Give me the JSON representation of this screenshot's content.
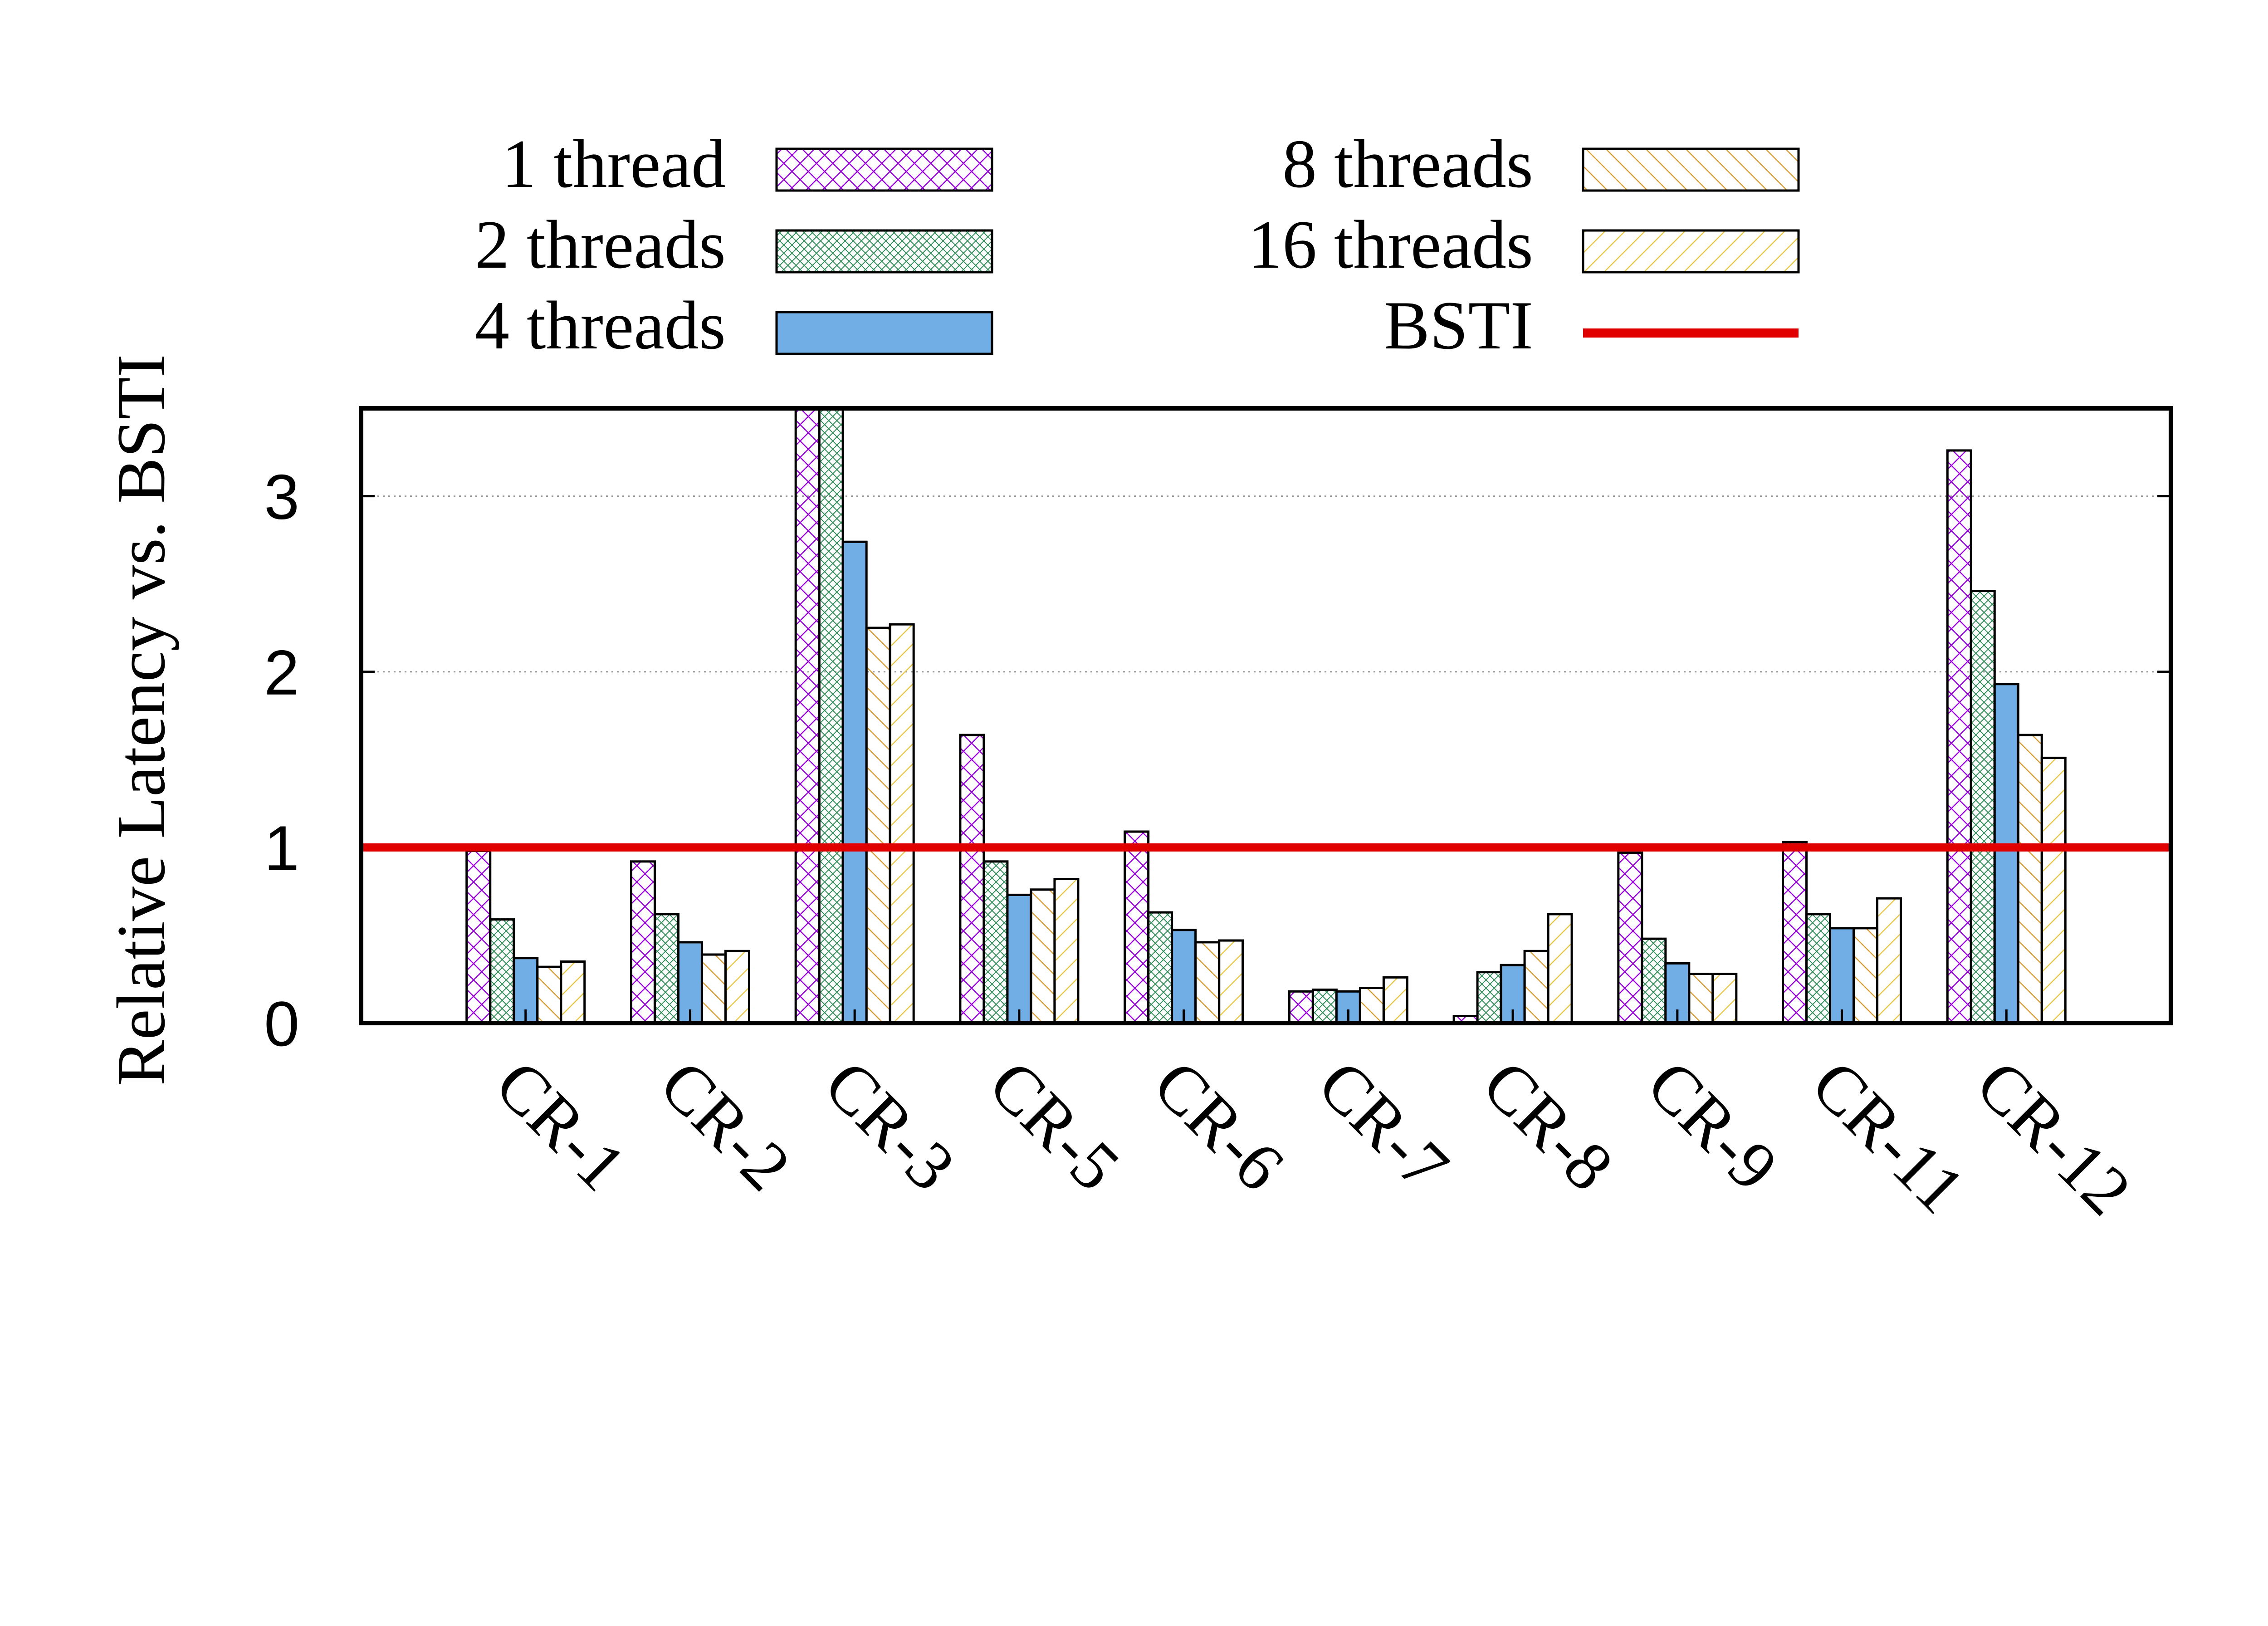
{
  "chart_data": {
    "type": "bar",
    "title": "",
    "xlabel": "",
    "ylabel": "Relative Latency vs. BSTI",
    "ylim": [
      0,
      3.5
    ],
    "yticks": [
      0,
      1,
      2,
      3
    ],
    "grid": "horizontal dotted",
    "legend_position": "top",
    "categories": [
      "CR-1",
      "CR-2",
      "CR-3",
      "CR-5",
      "CR-6",
      "CR-7",
      "CR-8",
      "CR-9",
      "CR-11",
      "CR-12"
    ],
    "series": [
      {
        "name": "1 thread",
        "color": "#9400d3",
        "pattern": "crosshatch-coarse",
        "values": [
          0.98,
          0.92,
          3.6,
          1.64,
          1.09,
          0.18,
          0.04,
          0.97,
          1.03,
          3.26
        ]
      },
      {
        "name": "2 threads",
        "color": "#2e8b57",
        "pattern": "crosshatch-fine",
        "values": [
          0.59,
          0.62,
          3.6,
          0.92,
          0.63,
          0.19,
          0.29,
          0.48,
          0.62,
          2.46
        ]
      },
      {
        "name": "4 threads",
        "color": "#72aee6",
        "pattern": "solid",
        "values": [
          0.37,
          0.46,
          2.74,
          0.73,
          0.53,
          0.18,
          0.33,
          0.34,
          0.54,
          1.93
        ]
      },
      {
        "name": "8 threads",
        "color": "#d79c36",
        "pattern": "diagonal-backslash",
        "values": [
          0.32,
          0.39,
          2.25,
          0.76,
          0.46,
          0.2,
          0.41,
          0.28,
          0.54,
          1.64
        ]
      },
      {
        "name": "16 threads",
        "color": "#e8c84a",
        "pattern": "diagonal-slash",
        "values": [
          0.35,
          0.41,
          2.27,
          0.82,
          0.47,
          0.26,
          0.62,
          0.28,
          0.71,
          1.51
        ]
      }
    ],
    "reference_line": {
      "name": "BSTI",
      "value": 1.0,
      "color": "#e00000"
    }
  }
}
